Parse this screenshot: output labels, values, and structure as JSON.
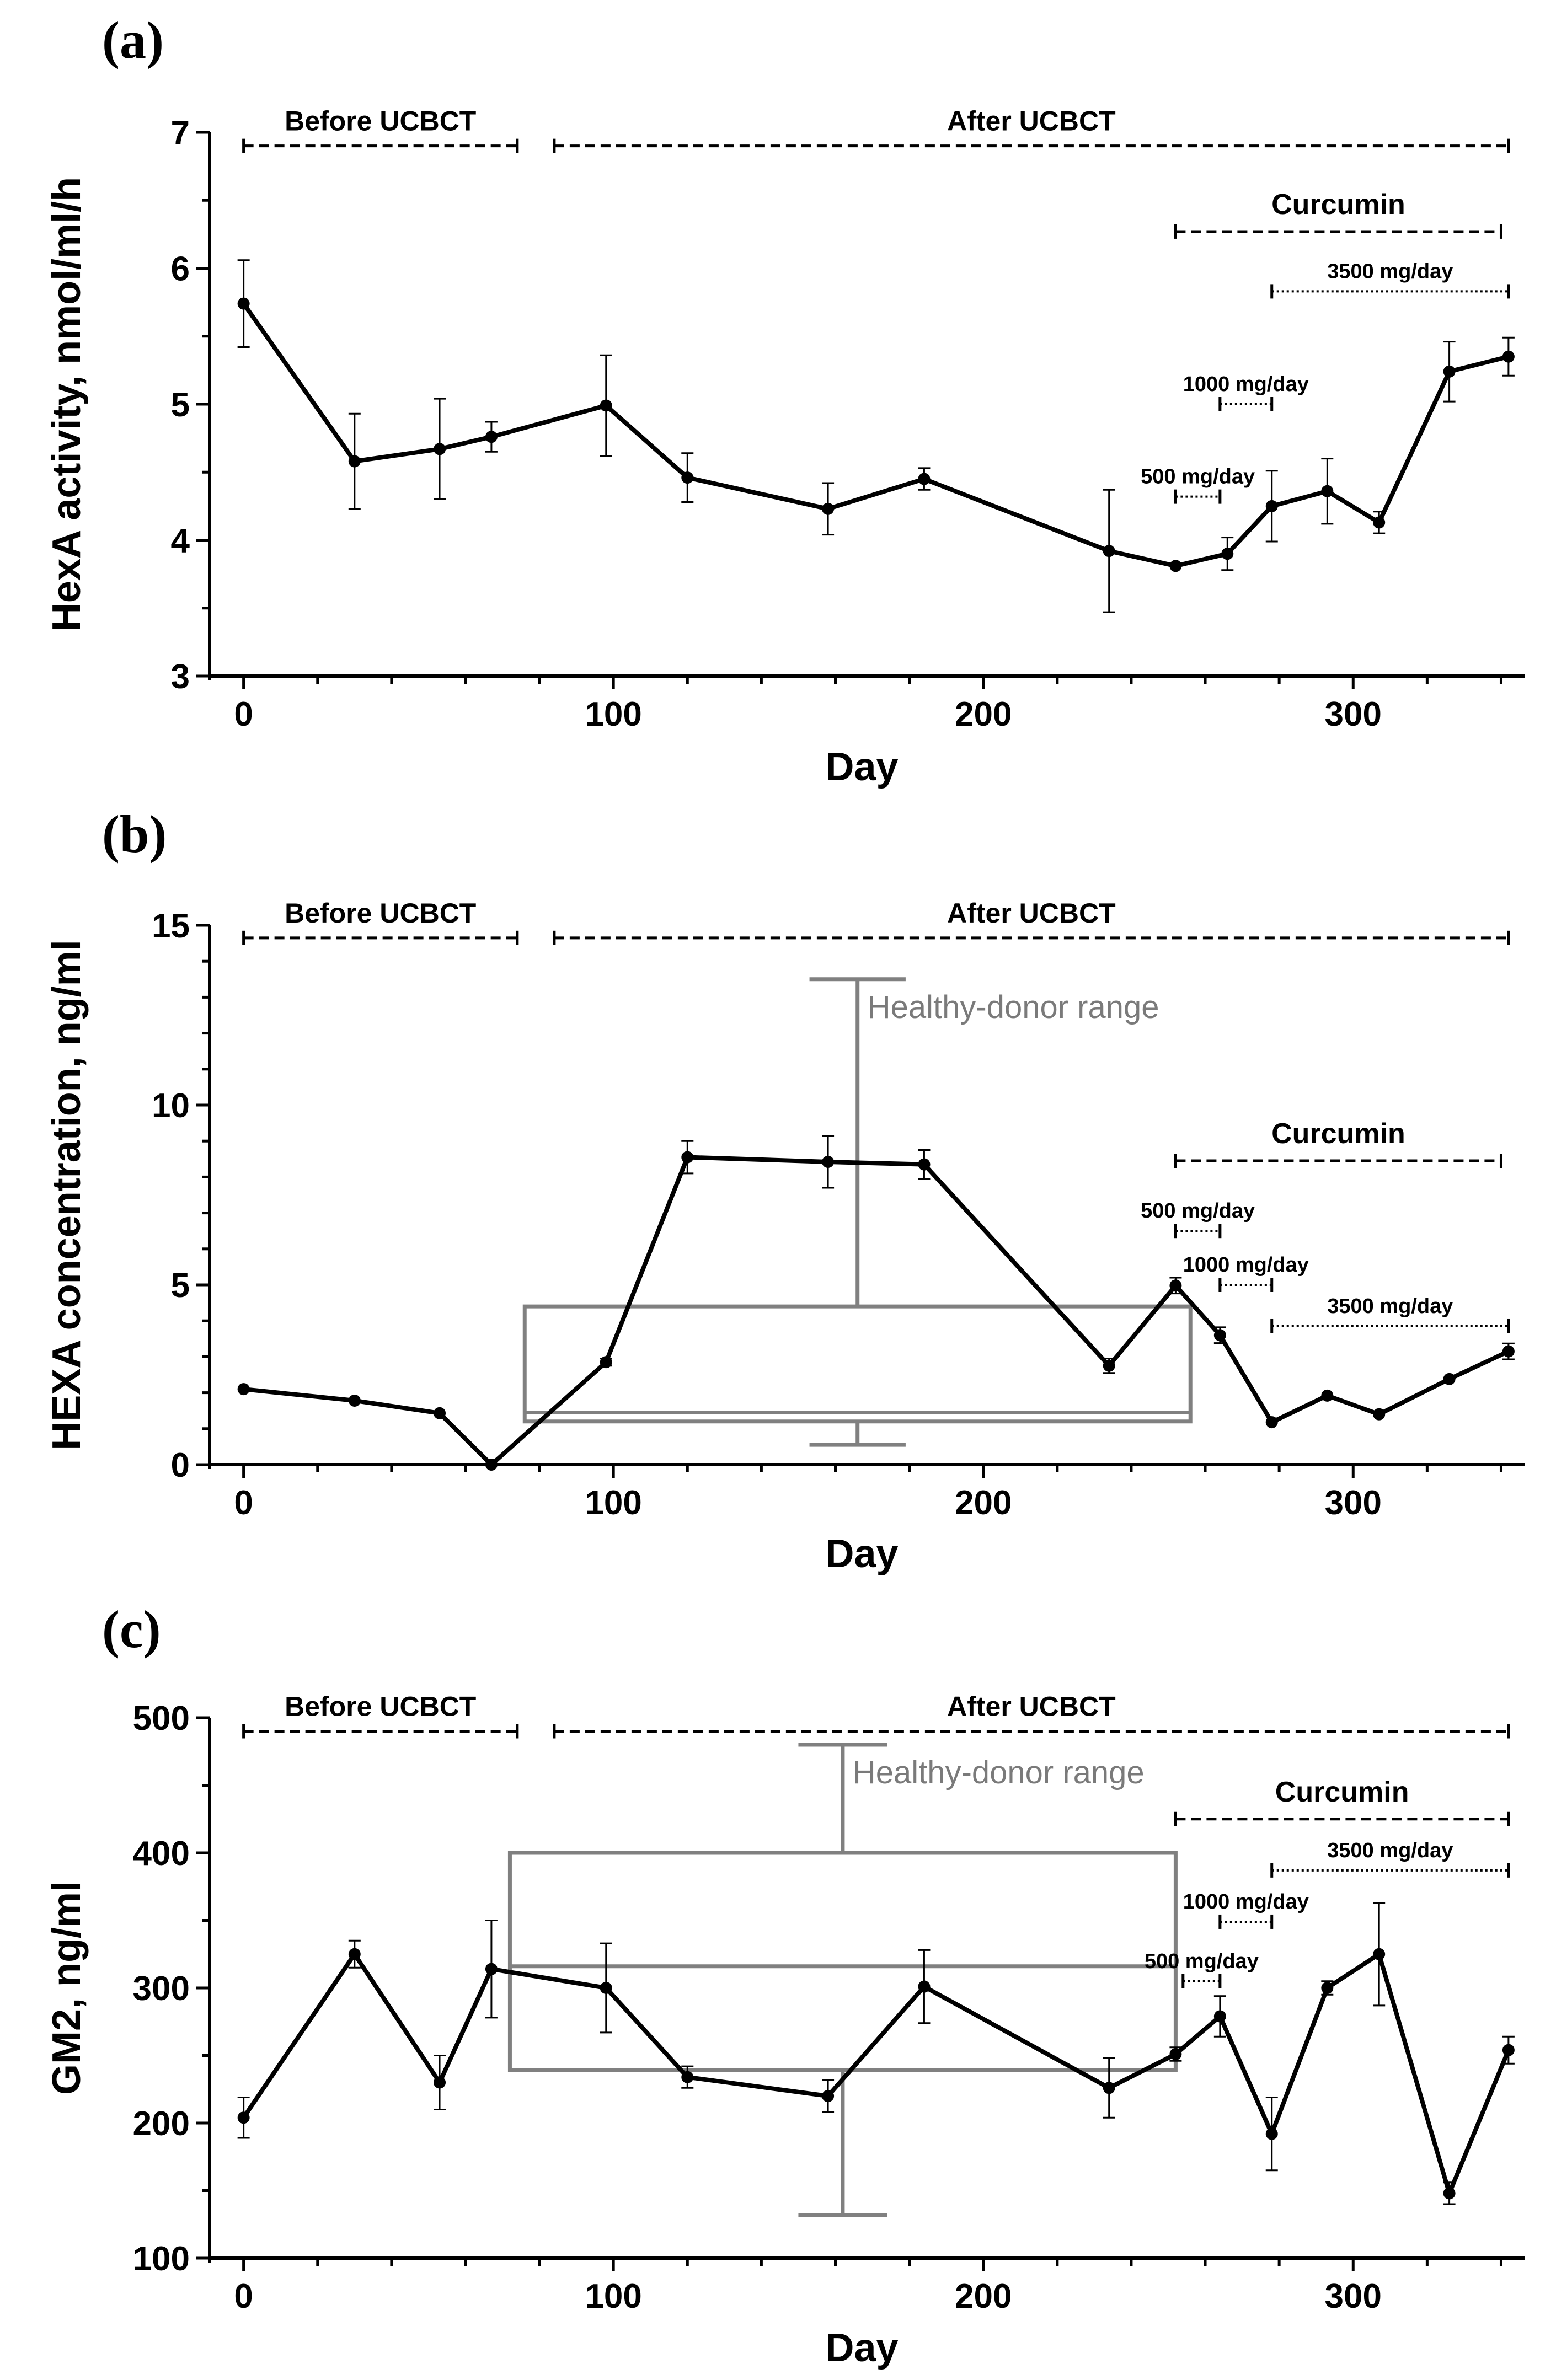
{
  "chart_data": [
    {
      "panel_label": "(a)",
      "type": "line",
      "xlabel": "Day",
      "ylabel": "HexA activity, nmol/ml/h",
      "xlim": [
        -8,
        345
      ],
      "ylim": [
        3,
        7
      ],
      "xticks": [
        0,
        100,
        200,
        300
      ],
      "yticks": [
        3,
        4,
        5,
        6,
        7
      ],
      "y_minor_step": 0.5,
      "series": [
        {
          "color": "#000000",
          "x": [
            0,
            30,
            53,
            67,
            98,
            120,
            158,
            184,
            234,
            252,
            266,
            278,
            293,
            307,
            326,
            342
          ],
          "y": [
            5.74,
            4.58,
            4.67,
            4.76,
            4.99,
            4.46,
            4.23,
            4.45,
            3.92,
            3.81,
            3.9,
            4.25,
            4.36,
            4.13,
            5.24,
            5.35
          ],
          "err": [
            0.32,
            0.35,
            0.37,
            0.11,
            0.37,
            0.18,
            0.19,
            0.08,
            0.45,
            0.0,
            0.12,
            0.26,
            0.24,
            0.08,
            0.22,
            0.14
          ]
        }
      ],
      "periods": [
        {
          "label": "Before UCBCT",
          "x0": 0,
          "x1": 74,
          "y": 6.9,
          "style": "dashed"
        },
        {
          "label": "After UCBCT",
          "x0": 84,
          "x1": 342,
          "y": 6.9,
          "style": "dashed"
        },
        {
          "label": "Curcumin",
          "x0": 252,
          "x1": 340,
          "y": 6.27,
          "style": "dashed"
        },
        {
          "label": "3500 mg/day",
          "x0": 278,
          "x1": 342,
          "y": 5.83,
          "style": "dotted"
        },
        {
          "label": "1000 mg/day",
          "x0": 264,
          "x1": 278,
          "y": 5.0,
          "style": "dotted"
        },
        {
          "label": "500 mg/day",
          "x0": 252,
          "x1": 264,
          "y": 4.32,
          "style": "dotted"
        }
      ],
      "healthy_range": null
    },
    {
      "panel_label": "(b)",
      "type": "line",
      "xlabel": "Day",
      "ylabel": "HEXA concentration, ng/ml",
      "xlim": [
        -8,
        345
      ],
      "ylim": [
        0,
        15
      ],
      "xticks": [
        0,
        100,
        200,
        300
      ],
      "yticks": [
        0,
        5,
        10,
        15
      ],
      "y_minor_step": 1,
      "series": [
        {
          "color": "#000000",
          "x": [
            0,
            30,
            53,
            67,
            98,
            120,
            158,
            184,
            234,
            252,
            264,
            278,
            293,
            307,
            326,
            342
          ],
          "y": [
            2.1,
            1.78,
            1.43,
            0.0,
            2.85,
            8.55,
            8.42,
            8.35,
            2.75,
            4.98,
            3.6,
            1.18,
            1.92,
            1.4,
            2.38,
            3.15
          ],
          "err": [
            0.0,
            0.0,
            0.0,
            0.0,
            0.1,
            0.45,
            0.72,
            0.4,
            0.2,
            0.22,
            0.22,
            0.0,
            0.0,
            0.0,
            0.0,
            0.22
          ]
        }
      ],
      "periods": [
        {
          "label": "Before UCBCT",
          "x0": 0,
          "x1": 74,
          "y": 14.65,
          "style": "dashed"
        },
        {
          "label": "After UCBCT",
          "x0": 84,
          "x1": 342,
          "y": 14.65,
          "style": "dashed"
        },
        {
          "label": "Curcumin",
          "x0": 252,
          "x1": 340,
          "y": 8.45,
          "style": "dashed"
        },
        {
          "label": "500 mg/day",
          "x0": 252,
          "x1": 264,
          "y": 6.5,
          "style": "dotted"
        },
        {
          "label": "1000 mg/day",
          "x0": 264,
          "x1": 278,
          "y": 5.0,
          "style": "dotted"
        },
        {
          "label": "3500 mg/day",
          "x0": 278,
          "x1": 342,
          "y": 3.85,
          "style": "dotted"
        }
      ],
      "healthy_range": {
        "label": "Healthy-donor range",
        "box_x0": 76,
        "box_x1": 256,
        "q1": 1.2,
        "median": 1.45,
        "q3": 4.4,
        "whisker_x": 166,
        "whisker_low": 0.55,
        "whisker_high": 13.5,
        "cap_half_width": 13
      }
    },
    {
      "panel_label": "(c)",
      "type": "line",
      "xlabel": "Day",
      "ylabel": "GM2, ng/ml",
      "xlim": [
        -8,
        345
      ],
      "ylim": [
        100,
        500
      ],
      "xticks": [
        0,
        100,
        200,
        300
      ],
      "yticks": [
        100,
        200,
        300,
        400,
        500
      ],
      "y_minor_step": 50,
      "series": [
        {
          "color": "#000000",
          "x": [
            0,
            30,
            53,
            67,
            98,
            120,
            158,
            184,
            234,
            252,
            264,
            278,
            293,
            307,
            326,
            342
          ],
          "y": [
            204,
            325,
            230,
            314,
            300,
            234,
            220,
            301,
            226,
            251,
            279,
            192,
            300,
            325,
            148,
            254
          ],
          "err": [
            15,
            10,
            20,
            36,
            33,
            8,
            12,
            27,
            22,
            5,
            15,
            27,
            5,
            38,
            8,
            10
          ]
        }
      ],
      "periods": [
        {
          "label": "Before UCBCT",
          "x0": 0,
          "x1": 74,
          "y": 490,
          "style": "dashed"
        },
        {
          "label": "After UCBCT",
          "x0": 84,
          "x1": 342,
          "y": 490,
          "style": "dashed"
        },
        {
          "label": "Curcumin",
          "x0": 252,
          "x1": 342,
          "y": 425,
          "style": "dashed"
        },
        {
          "label": "3500 mg/day",
          "x0": 278,
          "x1": 342,
          "y": 387,
          "style": "dotted"
        },
        {
          "label": "1000 mg/day",
          "x0": 264,
          "x1": 278,
          "y": 349,
          "style": "dotted"
        },
        {
          "label": "500 mg/day",
          "x0": 254,
          "x1": 264,
          "y": 305,
          "style": "dotted"
        }
      ],
      "healthy_range": {
        "label": "Healthy-donor range",
        "box_x0": 72,
        "box_x1": 252,
        "q1": 239,
        "median": 316,
        "q3": 400,
        "whisker_x": 162,
        "whisker_low": 132,
        "whisker_high": 480,
        "cap_half_width": 12
      }
    }
  ]
}
